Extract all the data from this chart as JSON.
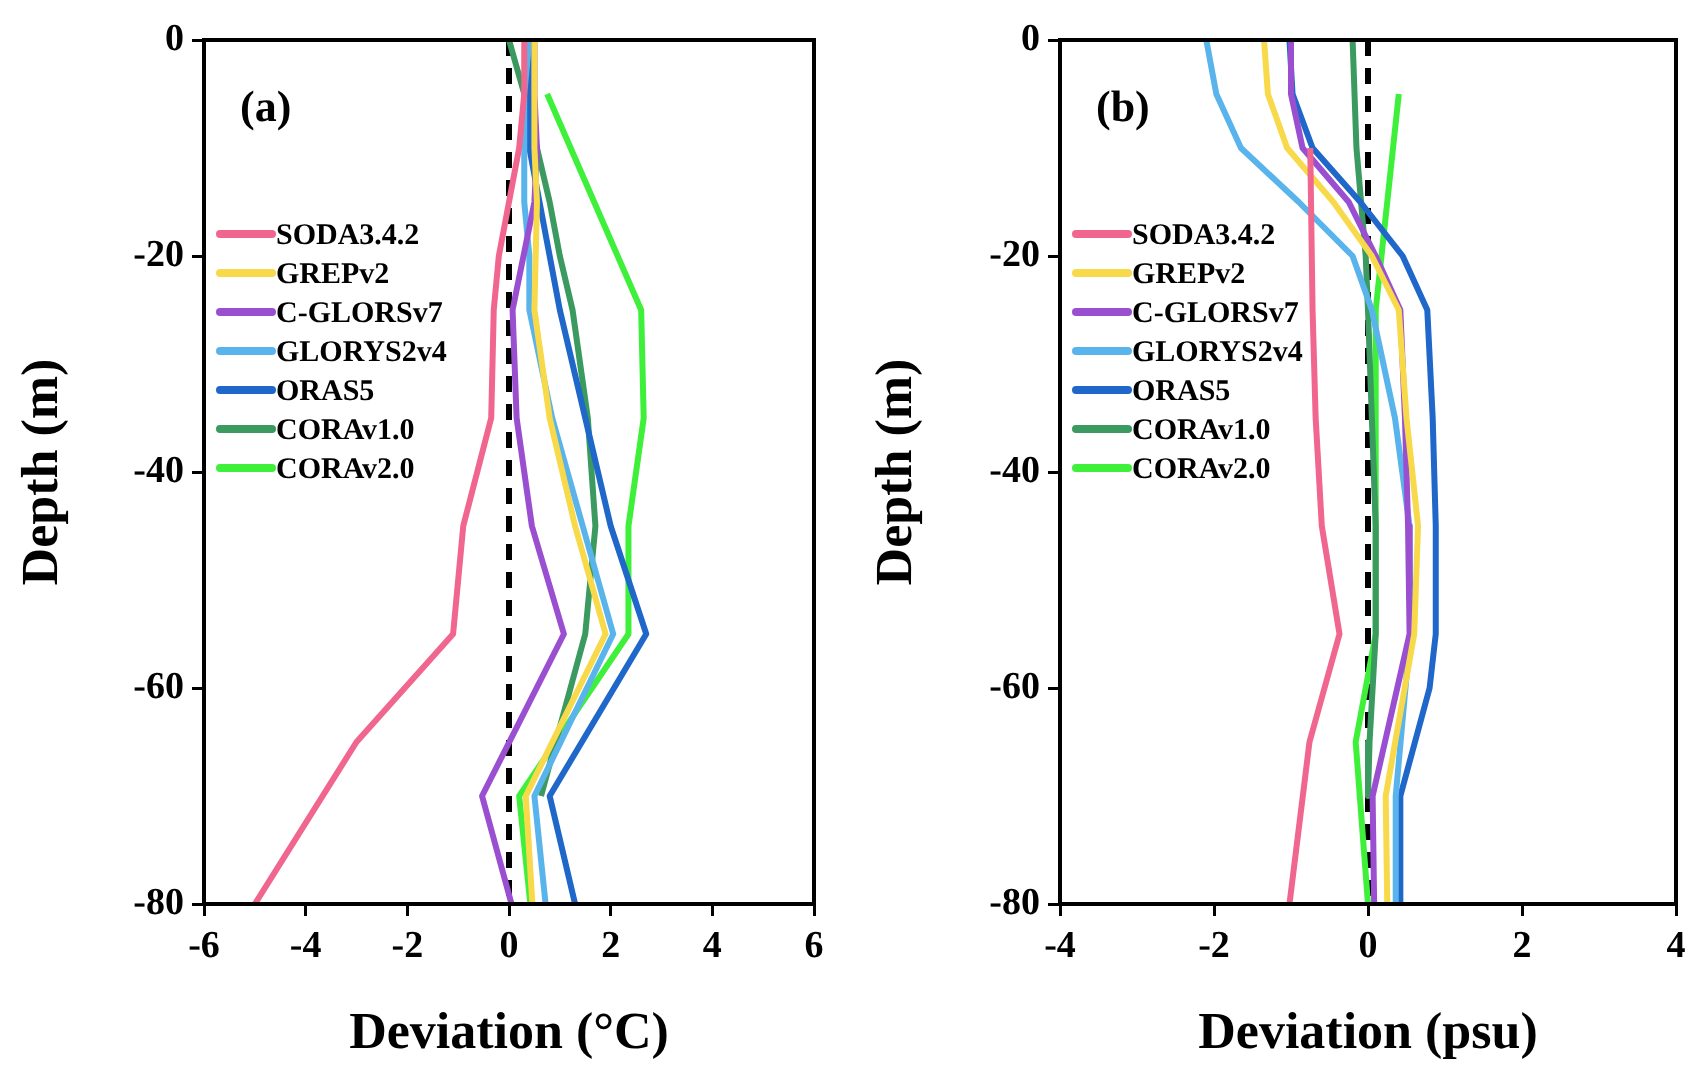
{
  "chart_data": [
    {
      "type": "line",
      "annotations": [
        "(a)"
      ],
      "xlabel": "Deviation (°C)",
      "ylabel": "Depth (m)",
      "xlim": [
        -6,
        6
      ],
      "xticks": [
        -6,
        -4,
        -2,
        0,
        2,
        4,
        6
      ],
      "ylim": [
        -80,
        0
      ],
      "yticks": [
        -80,
        -60,
        -40,
        -20,
        0
      ],
      "grid": false,
      "legend": "left",
      "ref_lines": [
        {
          "axis": "x",
          "value": 0,
          "color": "#000000",
          "line_style": "dashed"
        }
      ],
      "series": [
        {
          "name": "SODA3.4.2",
          "color": "#f0668f",
          "x": [
            0.3,
            0.3,
            0.2,
            0.0,
            -0.2,
            -0.3,
            -0.35,
            -0.9,
            -1.1,
            -3.0,
            -5.0
          ],
          "values": [
            0,
            -5,
            -10,
            -15,
            -20,
            -25,
            -35,
            -45,
            -55,
            -65,
            -80
          ]
        },
        {
          "name": "GREPv2",
          "color": "#f8d94a",
          "x": [
            0.5,
            0.5,
            0.55,
            0.5,
            0.8,
            1.3,
            1.9,
            0.33,
            0.46
          ],
          "values": [
            0,
            -10,
            -15,
            -25,
            -35,
            -45,
            -55,
            -70,
            -80
          ]
        },
        {
          "name": "C-GLORSv7",
          "color": "#9a4fd0",
          "x": [
            0.5,
            0.5,
            0.55,
            0.5,
            0.07,
            0.15,
            0.45,
            1.08,
            -0.53,
            0.05
          ],
          "values": [
            0,
            -5,
            -10,
            -15,
            -25,
            -35,
            -45,
            -55,
            -70,
            -80
          ]
        },
        {
          "name": "GLORYS2v4",
          "color": "#5ab4ec",
          "x": [
            0.4,
            0.3,
            0.3,
            0.4,
            0.4,
            0.85,
            1.45,
            2.05,
            0.5,
            0.72
          ],
          "values": [
            0,
            -5,
            -15,
            -20,
            -25,
            -35,
            -45,
            -55,
            -70,
            -80
          ]
        },
        {
          "name": "ORAS5",
          "color": "#1f67c9",
          "x": [
            0.4,
            0.4,
            1.0,
            1.5,
            2.0,
            2.7,
            0.8,
            1.3
          ],
          "values": [
            0,
            -10,
            -25,
            -35,
            -45,
            -55,
            -70,
            -80
          ]
        },
        {
          "name": "CORAv1.0",
          "color": "#3a9a5f",
          "x": [
            0.0,
            0.3,
            0.55,
            0.8,
            1.0,
            1.25,
            1.55,
            1.7,
            1.5,
            0.63
          ],
          "values": [
            0,
            -5,
            -10,
            -15,
            -20,
            -25,
            -35,
            -45,
            -55,
            -70
          ]
        },
        {
          "name": "CORAv2.0",
          "color": "#3ef03a",
          "x": [
            0.75,
            2.6,
            2.65,
            2.35,
            2.35,
            0.2,
            0.42
          ],
          "values": [
            -5,
            -25,
            -35,
            -45,
            -55,
            -70,
            -80
          ]
        }
      ]
    },
    {
      "type": "line",
      "annotations": [
        "(b)"
      ],
      "xlabel": "Deviation (psu)",
      "ylabel": "Depth (m)",
      "xlim": [
        -4,
        4
      ],
      "xticks": [
        -4,
        -2,
        0,
        2,
        4
      ],
      "ylim": [
        -80,
        0
      ],
      "yticks": [
        -80,
        -60,
        -40,
        -20,
        0
      ],
      "grid": false,
      "legend": "left",
      "ref_lines": [
        {
          "axis": "x",
          "value": 0,
          "color": "#000000",
          "line_style": "dashed"
        }
      ],
      "series": [
        {
          "name": "SODA3.4.2",
          "color": "#f0668f",
          "x": [
            -0.75,
            -0.72,
            -0.68,
            -0.6,
            -0.37,
            -0.76,
            -1.02
          ],
          "values": [
            -10,
            -25,
            -35,
            -45,
            -55,
            -65,
            -80
          ]
        },
        {
          "name": "GREPv2",
          "color": "#f8d94a",
          "x": [
            -1.35,
            -1.3,
            -1.05,
            -0.45,
            0.05,
            0.4,
            0.5,
            0.65,
            0.6,
            0.23,
            0.25
          ],
          "values": [
            0,
            -5,
            -10,
            -15,
            -20,
            -25,
            -35,
            -45,
            -55,
            -70,
            -80
          ]
        },
        {
          "name": "C-GLORSv7",
          "color": "#9a4fd0",
          "x": [
            -1.0,
            -1.0,
            -0.85,
            -0.25,
            0.1,
            0.42,
            0.48,
            0.52,
            0.54,
            0.06,
            0.08
          ],
          "values": [
            0,
            -5,
            -10,
            -15,
            -20,
            -25,
            -35,
            -45,
            -55,
            -70,
            -80
          ]
        },
        {
          "name": "GLORYS2v4",
          "color": "#5ab4ec",
          "x": [
            -2.1,
            -1.97,
            -1.65,
            -0.9,
            -0.2,
            0.05,
            0.35,
            0.54,
            0.55,
            0.36,
            0.36
          ],
          "values": [
            0,
            -5,
            -10,
            -15,
            -20,
            -25,
            -35,
            -45,
            -55,
            -70,
            -80
          ]
        },
        {
          "name": "ORAS5",
          "color": "#1f67c9",
          "x": [
            -1.02,
            -0.98,
            -0.72,
            -0.1,
            0.45,
            0.77,
            0.84,
            0.88,
            0.88,
            0.8,
            0.42,
            0.42
          ],
          "values": [
            0,
            -5,
            -10,
            -15,
            -20,
            -25,
            -35,
            -45,
            -55,
            -60,
            -70,
            -80
          ]
        },
        {
          "name": "CORAv1.0",
          "color": "#3a9a5f",
          "x": [
            -0.2,
            -0.15,
            -0.03,
            0.0,
            0.05,
            0.1,
            0.1,
            0.02,
            0.0
          ],
          "values": [
            0,
            -10,
            -20,
            -25,
            -35,
            -45,
            -55,
            -65,
            -70
          ]
        },
        {
          "name": "CORAv2.0",
          "color": "#3ef03a",
          "x": [
            0.4,
            0.1,
            0.1,
            -0.16,
            0.0
          ],
          "values": [
            -5,
            -25,
            -55,
            -65,
            -80
          ]
        }
      ]
    }
  ]
}
